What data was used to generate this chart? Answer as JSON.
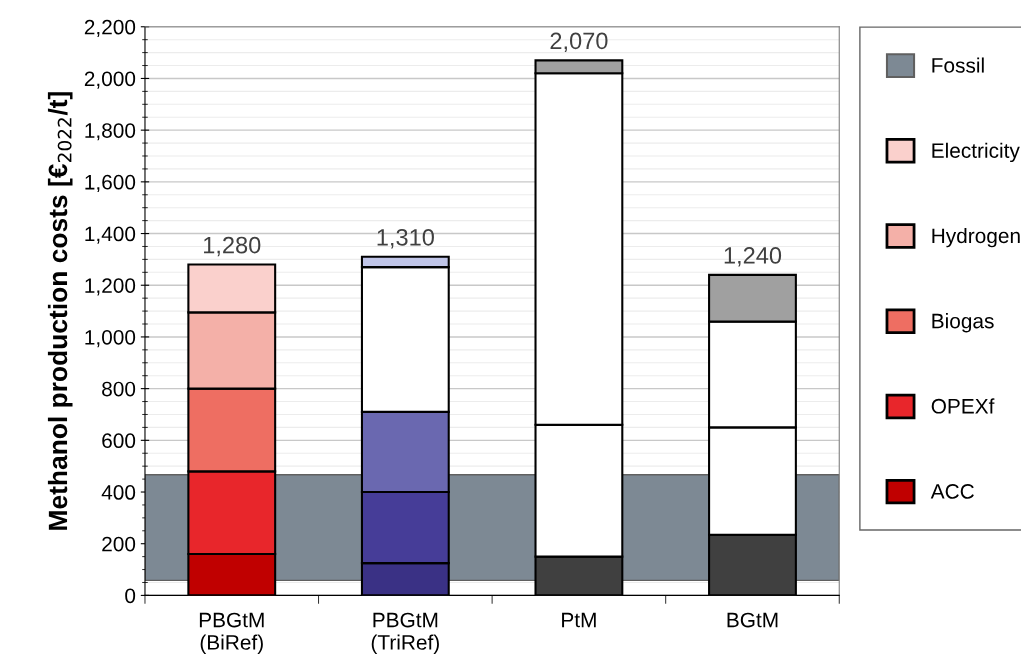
{
  "chart_data": {
    "type": "bar",
    "stacked": true,
    "ylabel": "Methanol production costs [€$_{2022}$/t]",
    "categories": [
      "PBGtM\n(BiRef)",
      "PBGtM\n(TriRef)",
      "PtM",
      "BGtM"
    ],
    "series": [
      {
        "name": "ACC",
        "color": "#c00000",
        "colors": [
          "#c00000",
          "#3a3185",
          "#404040",
          "#404040"
        ],
        "values": [
          160,
          125,
          150,
          235
        ]
      },
      {
        "name": "OPEXf",
        "color": "#e8262b",
        "colors": [
          "#e8262b",
          "#463d98",
          "#ffffff",
          "#ffffff"
        ],
        "values": [
          320,
          275,
          510,
          415
        ]
      },
      {
        "name": "Biogas",
        "color": "#ee6e62",
        "colors": [
          "#ee6e62",
          "#6a68b0",
          "#ffffff",
          "#ffffff"
        ],
        "values": [
          320,
          310,
          0,
          410
        ]
      },
      {
        "name": "Hydrogen",
        "color": "#f4b0a8",
        "colors": [
          "#f4b0a8",
          "#ffffff",
          "#ffffff",
          "#ffffff"
        ],
        "values": [
          295,
          560,
          1360,
          0
        ]
      },
      {
        "name": "Electricity",
        "color": "#fad0cc",
        "colors": [
          "#fad0cc",
          "#c0c5e8",
          "#a0a0a0",
          "#a0a0a0"
        ],
        "values": [
          185,
          40,
          50,
          180
        ]
      }
    ],
    "totals": [
      "1,280",
      "1,310",
      "2,070",
      "1,240"
    ],
    "bands": [
      {
        "axis": "y",
        "from": 58,
        "to": 467,
        "label": "Fossil",
        "color": "#7d8994"
      }
    ],
    "ylim": [
      0,
      2200
    ],
    "yticks": [
      0,
      {
        "value": 200,
        "label": "200"
      },
      {
        "value": 400,
        "label": "400"
      },
      {
        "value": 600,
        "label": "600"
      },
      {
        "value": 800,
        "label": "800"
      },
      {
        "value": 1000,
        "label": "1,000"
      },
      {
        "value": 1200,
        "label": "1,200"
      },
      {
        "value": 1400,
        "label": "1,400"
      },
      {
        "value": 1600,
        "label": "1,600"
      },
      {
        "value": 1800,
        "label": "1,800"
      },
      {
        "value": 2000,
        "label": "2,000"
      },
      {
        "value": 2200,
        "label": "2,200"
      }
    ],
    "grid": "y",
    "legend": "right"
  }
}
